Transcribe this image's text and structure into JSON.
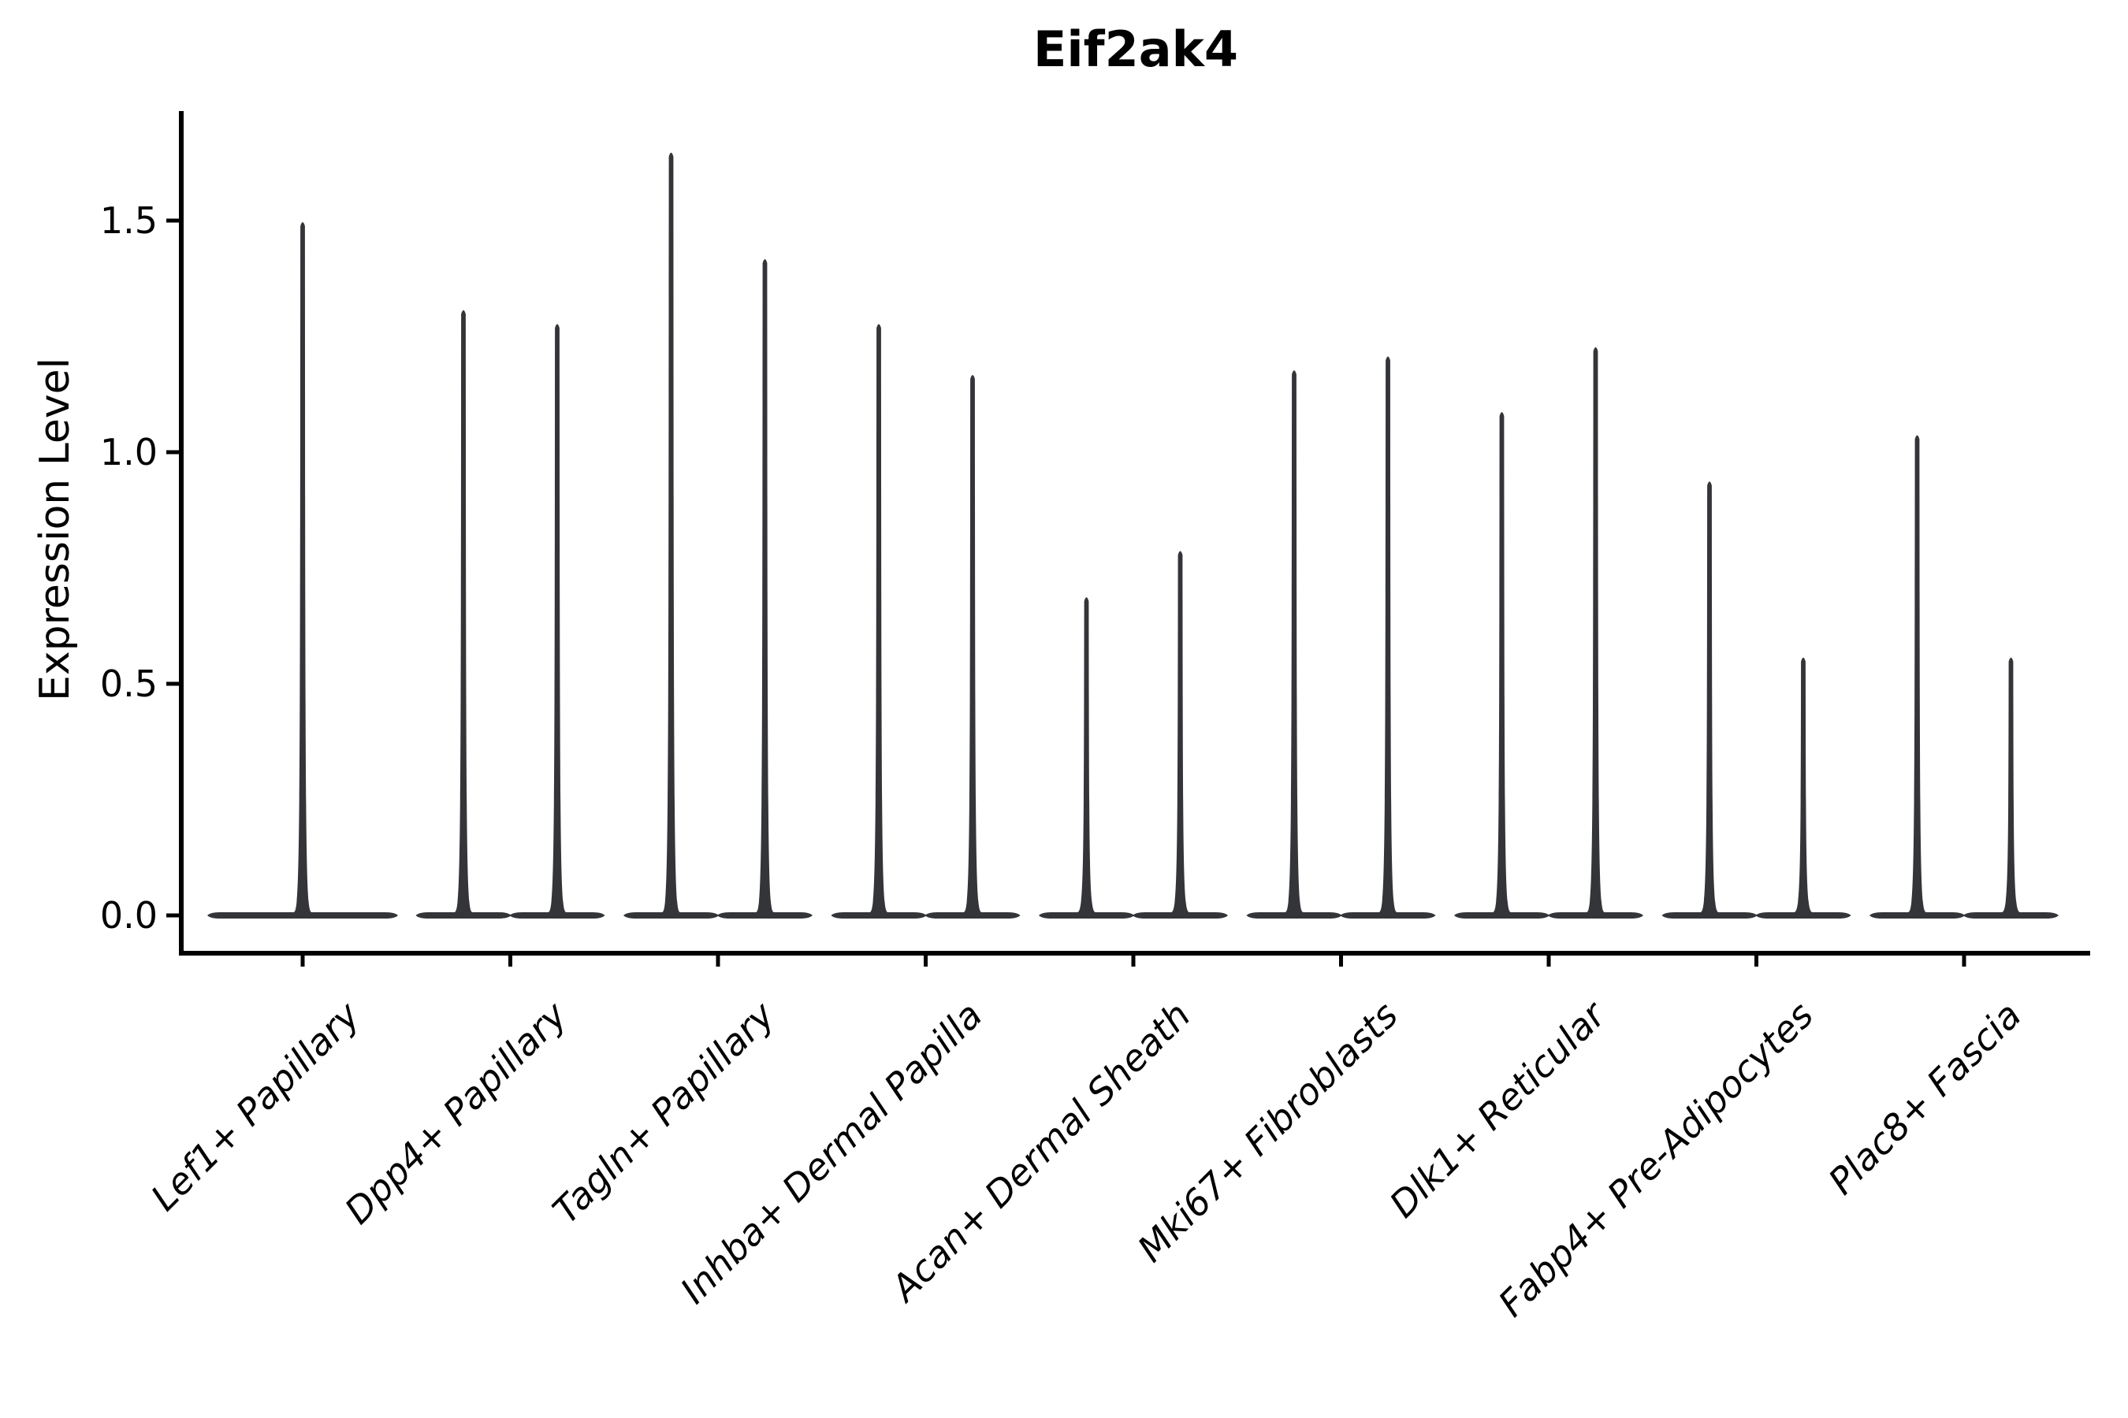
{
  "figure": {
    "background": "#ffffff",
    "ink_color": "#000000",
    "violin_color": "#333538"
  },
  "chart_data": {
    "type": "violin",
    "title": "Eif2ak4",
    "ylabel": "Expression Level",
    "xlabel": "",
    "grid": false,
    "legend_position": "none",
    "ylim": [
      -0.08,
      1.73
    ],
    "ytick_labels": [
      "0.0",
      "0.5",
      "1.0",
      "1.5"
    ],
    "ytick_values": [
      0.0,
      0.5,
      1.0,
      1.5
    ],
    "categories": [
      "Lef1+ Papillary",
      "Dpp4+ Papillary",
      "Tagln+ Papillary",
      "Inhba+ Dermal Papilla",
      "Acan+ Dermal Sheath",
      "Mki67+ Fibroblasts",
      "Dlk1+ Reticular",
      "Fabp4+ Pre-Adipocytes",
      "Plac8+ Fascia"
    ],
    "violin_shape_note": "Each violin is a narrow vertical spike rising from a wide flat base at expression 0 (density concentrated at zero).",
    "violin_max_per_group": [
      [
        1.5
      ],
      [
        1.31,
        1.28
      ],
      [
        1.65,
        1.42
      ],
      [
        1.28,
        1.17
      ],
      [
        0.69,
        0.79
      ],
      [
        1.18,
        1.21
      ],
      [
        1.09,
        1.23
      ],
      [
        0.94,
        0.56
      ],
      [
        1.04,
        0.56
      ]
    ],
    "baseline_value": 0.0
  }
}
